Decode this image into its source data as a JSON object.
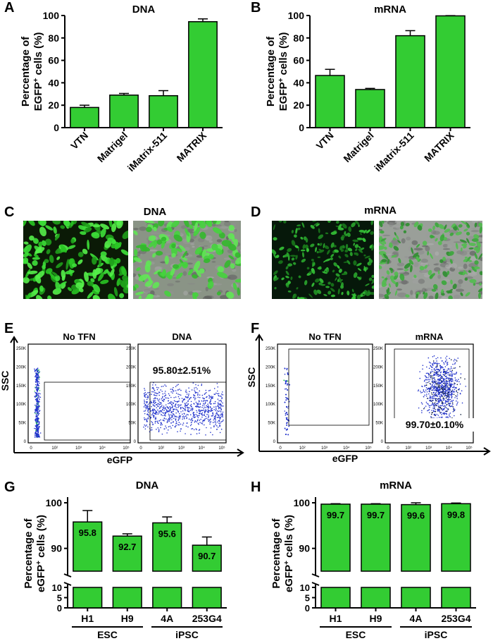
{
  "figure": {
    "labels": [
      "A",
      "B",
      "C",
      "D",
      "E",
      "F",
      "G",
      "H"
    ],
    "colors": {
      "bar": "#33cc33",
      "bar_stroke": "#000000",
      "dot_blue": "#2233cc"
    }
  },
  "chart_data": [
    {
      "id": "A",
      "type": "bar",
      "title": "DNA",
      "ylabel": "Percentage of EGFP+ cells (%)",
      "categories": [
        "VTN",
        "Matrigel",
        "iMatrix-511",
        "MATRIX"
      ],
      "values": [
        18,
        29,
        28.5,
        94.5
      ],
      "errors": [
        2,
        1.5,
        4.5,
        2.5
      ],
      "ylim": [
        0,
        100
      ],
      "yticks": [
        0,
        20,
        40,
        60,
        80,
        100
      ]
    },
    {
      "id": "B",
      "type": "bar",
      "title": "mRNA",
      "ylabel": "Percentage of EGFP+ cells (%)",
      "categories": [
        "VTN",
        "Matrigel",
        "iMatrix-511",
        "MATRIX"
      ],
      "values": [
        46.5,
        34,
        82,
        99.7
      ],
      "errors": [
        5.5,
        1,
        4.5,
        0.2
      ],
      "ylim": [
        0,
        100
      ],
      "yticks": [
        0,
        20,
        40,
        60,
        80,
        100
      ]
    },
    {
      "id": "G",
      "type": "bar",
      "title": "DNA",
      "ylabel": "Percentage of eGFP+ cells (%)",
      "categories": [
        "H1",
        "H9",
        "4A",
        "253G4"
      ],
      "groups": [
        {
          "name": "ESC",
          "members": [
            "H1",
            "H9"
          ]
        },
        {
          "name": "iPSC",
          "members": [
            "4A",
            "253G4"
          ]
        }
      ],
      "values": [
        95.8,
        92.7,
        95.6,
        90.7
      ],
      "value_labels": [
        "95.8",
        "92.7",
        "95.6",
        "90.7"
      ],
      "errors": [
        2.5,
        0.5,
        1.3,
        1.8
      ],
      "broken_axis": {
        "upper": [
          85,
          100
        ],
        "upper_ticks": [
          90,
          100
        ],
        "lower": [
          0,
          10
        ],
        "lower_ticks": [
          0,
          5,
          10
        ]
      }
    },
    {
      "id": "H",
      "type": "bar",
      "title": "mRNA",
      "ylabel": "Percentage of eGFP+ cells (%)",
      "categories": [
        "H1",
        "H9",
        "4A",
        "253G4"
      ],
      "groups": [
        {
          "name": "ESC",
          "members": [
            "H1",
            "H9"
          ]
        },
        {
          "name": "iPSC",
          "members": [
            "4A",
            "253G4"
          ]
        }
      ],
      "values": [
        99.7,
        99.7,
        99.6,
        99.8
      ],
      "value_labels": [
        "99.7",
        "99.7",
        "99.6",
        "99.8"
      ],
      "errors": [
        0.1,
        0.1,
        0.4,
        0.15
      ],
      "broken_axis": {
        "upper": [
          85,
          100
        ],
        "upper_ticks": [
          90,
          100
        ],
        "lower": [
          0,
          10
        ],
        "lower_ticks": [
          0,
          5,
          10
        ]
      }
    }
  ],
  "micrographs": {
    "C": {
      "title": "DNA"
    },
    "D": {
      "title": "mRNA"
    }
  },
  "flow": {
    "E": {
      "ylabel": "SSC",
      "xlabel": "eGFP",
      "left_title": "No TFN",
      "right_title": "DNA",
      "right_value": "95.80±2.51%",
      "yticks": [
        "0",
        "50K",
        "100K",
        "150K",
        "200K",
        "250K"
      ],
      "xticks": [
        "0",
        "10²",
        "10³",
        "10⁴",
        "10⁵"
      ]
    },
    "F": {
      "ylabel": "SSC",
      "xlabel": "eGFP",
      "left_title": "No TFN",
      "right_title": "mRNA",
      "right_value": "99.70±0.10%",
      "yticks": [
        "0",
        "50K",
        "100K",
        "150K",
        "200K",
        "250K"
      ],
      "xticks": [
        "0",
        "10²",
        "10³",
        "10⁴",
        "10⁵"
      ]
    }
  }
}
